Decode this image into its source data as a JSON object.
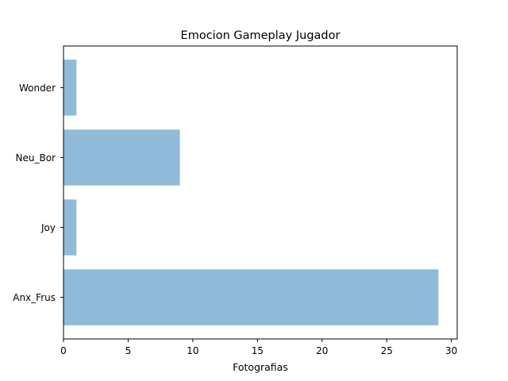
{
  "chart_data": {
    "type": "bar",
    "orientation": "horizontal",
    "title": "Emocion Gameplay Jugador",
    "xlabel": "Fotografias",
    "ylabel": "",
    "categories": [
      "Anx_Frus",
      "Joy",
      "Neu_Bor",
      "Wonder"
    ],
    "values": [
      29,
      1,
      9,
      1
    ],
    "xlim": [
      0,
      30.45
    ],
    "xticks": [
      0,
      5,
      10,
      15,
      20,
      25,
      30
    ],
    "grid": false,
    "bar_color": "#8fbbd9"
  }
}
